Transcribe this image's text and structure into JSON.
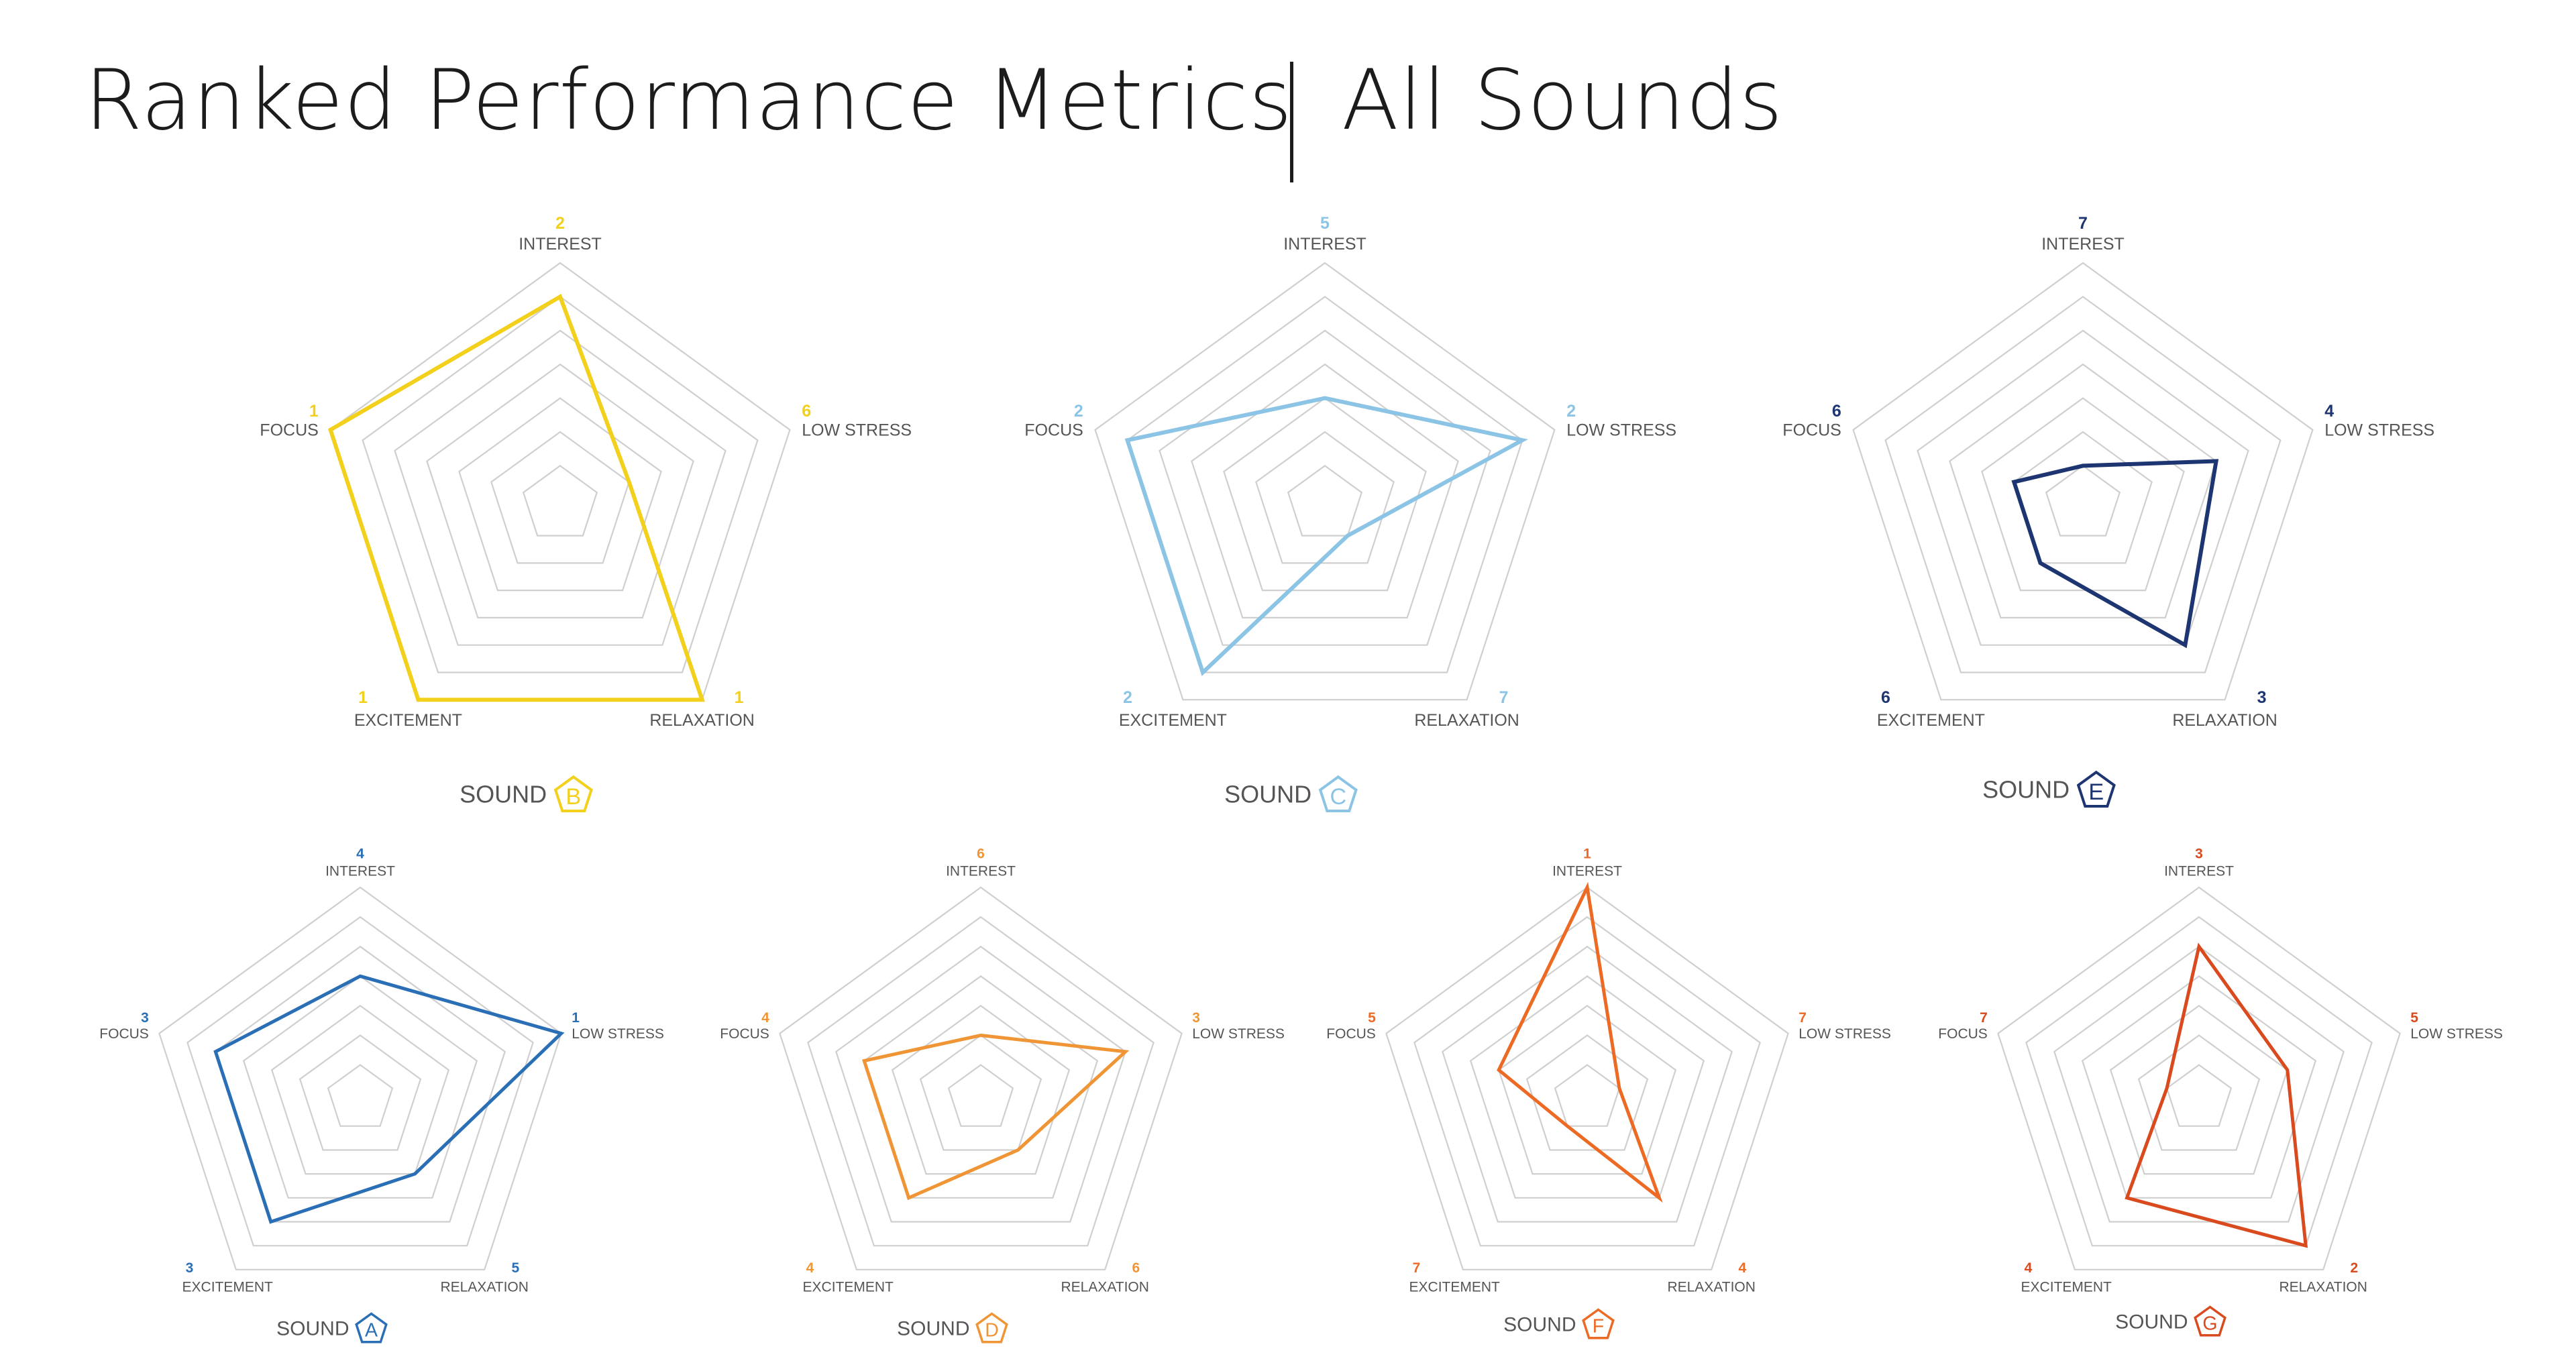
{
  "title": {
    "main": "Ranked Performance Metrics",
    "sub": "All Sounds"
  },
  "colors": {
    "grid": "#cfcfcf",
    "label": "#555555",
    "B": "#f2d01c",
    "C": "#8cc4e6",
    "E": "#1d3570",
    "A": "#2a6fb5",
    "D": "#f09535",
    "F": "#ec6a24",
    "G": "#d94a1e"
  },
  "chart_data": [
    {
      "type": "radar",
      "title": "SOUND",
      "badge": "B",
      "axes": [
        "INTEREST",
        "LOW STRESS",
        "RELAXATION",
        "EXCITEMENT",
        "FOCUS"
      ],
      "ranks": [
        2,
        6,
        1,
        1,
        1
      ],
      "rank_scale": [
        1,
        7
      ],
      "color": "#f2d01c"
    },
    {
      "type": "radar",
      "title": "SOUND",
      "badge": "C",
      "axes": [
        "INTEREST",
        "LOW STRESS",
        "RELAXATION",
        "EXCITEMENT",
        "FOCUS"
      ],
      "ranks": [
        5,
        2,
        7,
        2,
        2
      ],
      "rank_scale": [
        1,
        7
      ],
      "color": "#8cc4e6"
    },
    {
      "type": "radar",
      "title": "SOUND",
      "badge": "E",
      "axes": [
        "INTEREST",
        "LOW STRESS",
        "RELAXATION",
        "EXCITEMENT",
        "FOCUS"
      ],
      "ranks": [
        7,
        4,
        3,
        6,
        6
      ],
      "rank_scale": [
        1,
        7
      ],
      "color": "#1d3570"
    },
    {
      "type": "radar",
      "title": "SOUND",
      "badge": "A",
      "axes": [
        "INTEREST",
        "LOW STRESS",
        "RELAXATION",
        "EXCITEMENT",
        "FOCUS"
      ],
      "ranks": [
        4,
        1,
        5,
        3,
        3
      ],
      "rank_scale": [
        1,
        7
      ],
      "color": "#2a6fb5"
    },
    {
      "type": "radar",
      "title": "SOUND",
      "badge": "D",
      "axes": [
        "INTEREST",
        "LOW STRESS",
        "RELAXATION",
        "EXCITEMENT",
        "FOCUS"
      ],
      "ranks": [
        6,
        3,
        6,
        4,
        4
      ],
      "rank_scale": [
        1,
        7
      ],
      "color": "#f09535"
    },
    {
      "type": "radar",
      "title": "SOUND",
      "badge": "F",
      "axes": [
        "INTEREST",
        "LOW STRESS",
        "RELAXATION",
        "EXCITEMENT",
        "FOCUS"
      ],
      "ranks": [
        1,
        7,
        4,
        7,
        5
      ],
      "rank_scale": [
        1,
        7
      ],
      "color": "#ec6a24"
    },
    {
      "type": "radar",
      "title": "SOUND",
      "badge": "G",
      "axes": [
        "INTEREST",
        "LOW STRESS",
        "RELAXATION",
        "EXCITEMENT",
        "FOCUS"
      ],
      "ranks": [
        3,
        5,
        2,
        4,
        7
      ],
      "rank_scale": [
        1,
        7
      ],
      "color": "#d94a1e"
    }
  ]
}
